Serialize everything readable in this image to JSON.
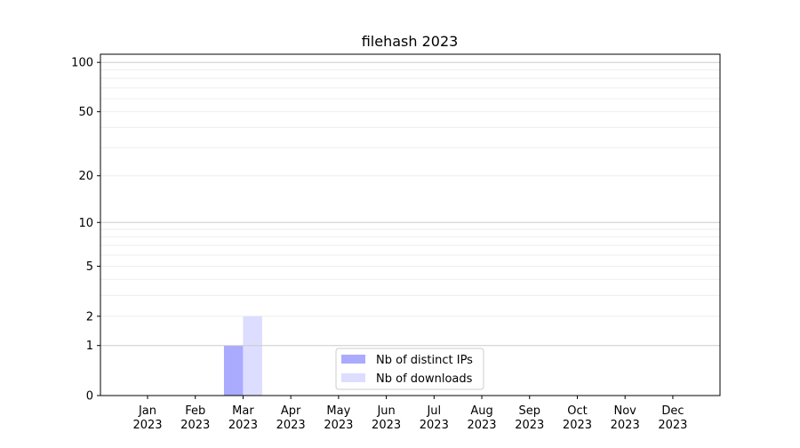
{
  "chart_data": {
    "type": "bar",
    "title": "filehash 2023",
    "xlabel": "",
    "ylabel": "",
    "yscale": "log(1+y)",
    "ylim": [
      0,
      116
    ],
    "yticks": [
      0,
      1,
      2,
      5,
      10,
      20,
      50,
      100
    ],
    "ytick_labels": [
      "0",
      "1",
      "2",
      "5",
      "10",
      "20",
      "50",
      "100"
    ],
    "grid": true,
    "legend_placement": "bottom-center",
    "categories": [
      [
        "Jan",
        "2023"
      ],
      [
        "Feb",
        "2023"
      ],
      [
        "Mar",
        "2023"
      ],
      [
        "Apr",
        "2023"
      ],
      [
        "May",
        "2023"
      ],
      [
        "Jun",
        "2023"
      ],
      [
        "Jul",
        "2023"
      ],
      [
        "Aug",
        "2023"
      ],
      [
        "Sep",
        "2023"
      ],
      [
        "Oct",
        "2023"
      ],
      [
        "Nov",
        "2023"
      ],
      [
        "Dec",
        "2023"
      ]
    ],
    "series": [
      {
        "name": "Nb of distinct IPs",
        "color": "#aaaaff",
        "values": [
          0,
          0,
          1,
          0,
          0,
          0,
          0,
          0,
          0,
          0,
          0,
          0
        ]
      },
      {
        "name": "Nb of downloads",
        "color": "#ddddff",
        "values": [
          0,
          0,
          2,
          0,
          0,
          0,
          0,
          0,
          0,
          0,
          0,
          0
        ]
      }
    ]
  }
}
